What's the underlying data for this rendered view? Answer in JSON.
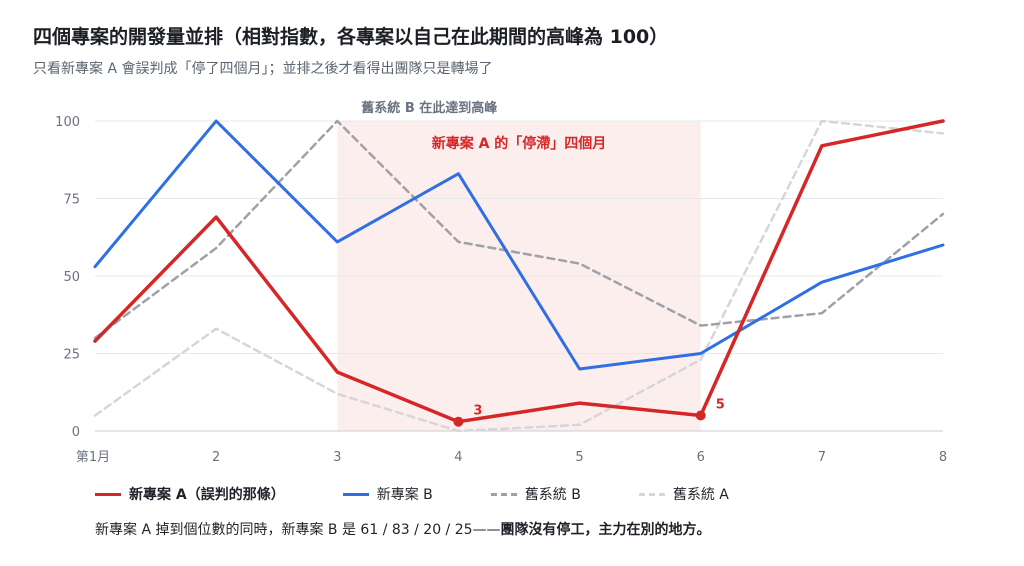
{
  "title": "四個專案的開發量並排（相對指數，各專案以自己在此期間的高峰為 100）",
  "subtitle": "只看新專案 A 會誤判成「停了四個月」；並排之後才看得出團隊只是轉場了",
  "colors": {
    "project_a_new": "#d62728",
    "project_b_new": "#2f6fe4",
    "project_b_old": "#9ea1a7",
    "project_a_old": "#d4d6da",
    "highlight": "#fdeeee"
  },
  "chart_data": {
    "type": "line",
    "x": [
      "第1月",
      "2",
      "3",
      "4",
      "5",
      "6",
      "7",
      "8"
    ],
    "ylim": [
      0,
      100
    ],
    "yticks": [
      0,
      25,
      50,
      75,
      100
    ],
    "grid": true,
    "series": [
      {
        "name": "舊系統 A",
        "values": [
          5,
          33,
          12,
          0,
          2,
          23,
          100,
          96
        ],
        "color": "#d4d6da",
        "style": "dashed",
        "width": 2.5
      },
      {
        "name": "舊系統 B",
        "values": [
          30,
          59,
          100,
          61,
          54,
          34,
          38,
          70
        ],
        "color": "#9ea1a7",
        "style": "dashed",
        "width": 2.5
      },
      {
        "name": "新專案 B",
        "values": [
          53,
          100,
          61,
          83,
          20,
          25,
          48,
          60
        ],
        "color": "#2f6fe4",
        "style": "solid",
        "width": 3
      },
      {
        "name": "新專案 A（誤判的那條）",
        "values": [
          29,
          69,
          19,
          3,
          9,
          5,
          92,
          100
        ],
        "color": "#d62728",
        "style": "solid",
        "width": 3.5
      }
    ],
    "highlight_region": {
      "from": "3",
      "to": "6",
      "label": "新專案 A 的「停滯」四個月"
    },
    "annotations": [
      {
        "text": "舊系統 B 在此達到高峰",
        "at_x": "3",
        "at_y": 100
      },
      {
        "text": "3",
        "at_x": "4",
        "at_y": 3
      },
      {
        "text": "5",
        "at_x": "6",
        "at_y": 5
      }
    ],
    "legend": {
      "placement": "bottom",
      "entries": [
        "新專案 A（誤判的那條）",
        "新專案 B",
        "舊系統 B",
        "舊系統 A"
      ]
    }
  },
  "footnote": {
    "text": "新專案 A 掉到個位數的同時，新專案 B 是 61 / 83 / 20 / 25——",
    "emphasis": "團隊沒有停工，主力在別的地方。"
  }
}
